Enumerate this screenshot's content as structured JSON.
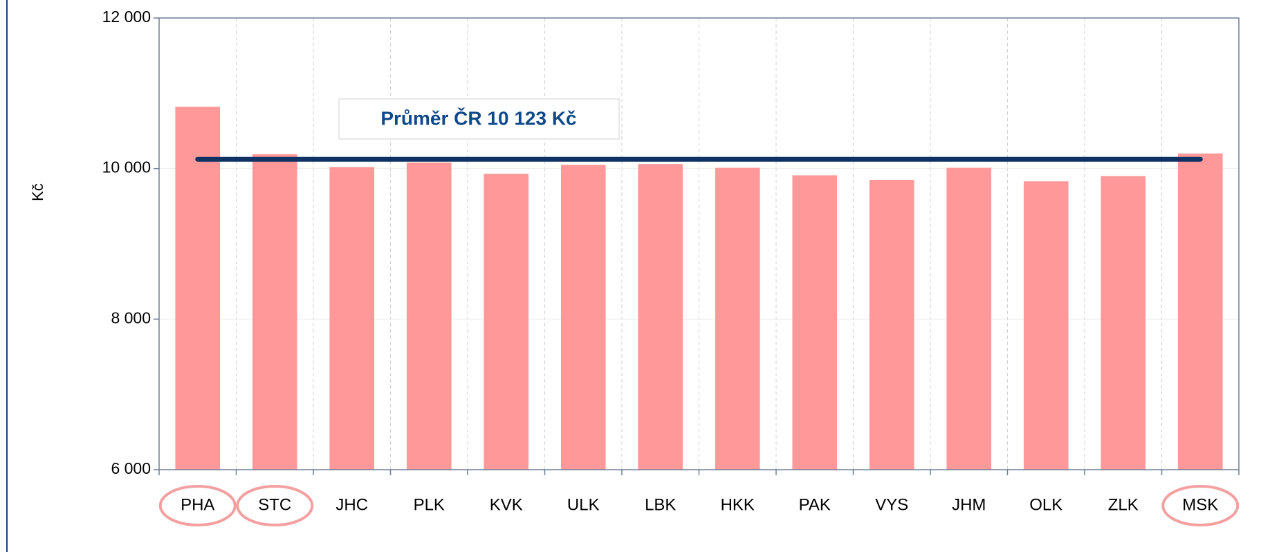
{
  "chart_data": {
    "type": "bar",
    "y_label": "Kč",
    "categories": [
      "PHA",
      "STC",
      "JHC",
      "PLK",
      "KVK",
      "ULK",
      "LBK",
      "HKK",
      "PAK",
      "VYS",
      "JHM",
      "OLK",
      "ZLK",
      "MSK"
    ],
    "values": [
      10820,
      10190,
      10020,
      10080,
      9930,
      10050,
      10060,
      10010,
      9910,
      9850,
      10010,
      9830,
      9900,
      10200
    ],
    "color": "#ff9999",
    "ylim": [
      6000,
      12000
    ],
    "yticks": [
      {
        "value": 6000,
        "label": "6 000"
      },
      {
        "value": 8000,
        "label": "8 000"
      },
      {
        "value": 10000,
        "label": "10 000"
      },
      {
        "value": 12000,
        "label": "12 000"
      }
    ],
    "grid": true,
    "highlight_indices": [
      0,
      1,
      13
    ],
    "reference_line": {
      "value": 10123,
      "label": "Průměr ČR 10 123 Kč",
      "color": "#0e3263"
    }
  }
}
